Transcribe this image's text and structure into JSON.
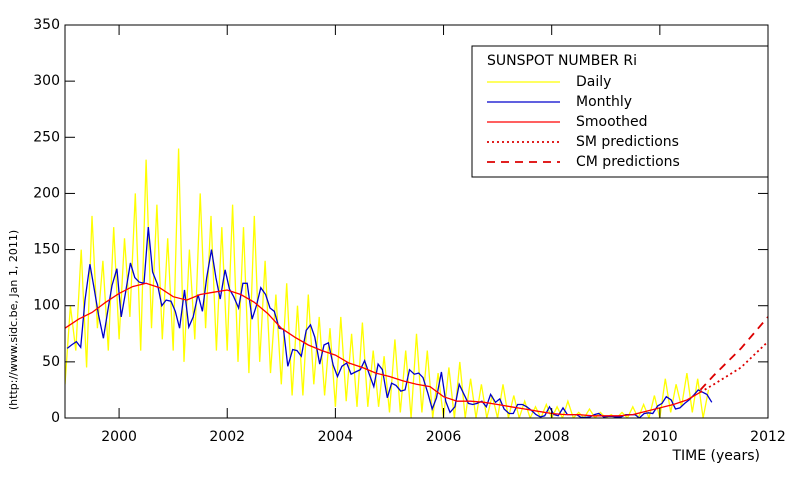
{
  "chart_data": {
    "type": "line",
    "legend_title": "SUNSPOT NUMBER Ri",
    "xlabel": "TIME (years)",
    "side_note": "(http://www.sidc.be, Jan  1, 2011)",
    "xlim": [
      1999,
      2012
    ],
    "xticks": [
      2000,
      2002,
      2004,
      2006,
      2008,
      2010,
      2012
    ],
    "ylim": [
      0,
      350
    ],
    "yticks": [
      0,
      50,
      100,
      150,
      200,
      250,
      300,
      350
    ],
    "legend": "upper right",
    "series": [
      {
        "name": "Daily",
        "color": "#ffff00",
        "style": "solid",
        "x": [
          1999.0,
          1999.1,
          1999.2,
          1999.3,
          1999.4,
          1999.5,
          1999.6,
          1999.7,
          1999.8,
          1999.9,
          2000.0,
          2000.1,
          2000.2,
          2000.3,
          2000.4,
          2000.5,
          2000.6,
          2000.7,
          2000.8,
          2000.9,
          2001.0,
          2001.1,
          2001.2,
          2001.3,
          2001.4,
          2001.5,
          2001.6,
          2001.7,
          2001.8,
          2001.9,
          2002.0,
          2002.1,
          2002.2,
          2002.3,
          2002.4,
          2002.5,
          2002.6,
          2002.7,
          2002.8,
          2002.9,
          2003.0,
          2003.1,
          2003.2,
          2003.3,
          2003.4,
          2003.5,
          2003.6,
          2003.7,
          2003.8,
          2003.9,
          2004.0,
          2004.1,
          2004.2,
          2004.3,
          2004.4,
          2004.5,
          2004.6,
          2004.7,
          2004.8,
          2004.9,
          2005.0,
          2005.1,
          2005.2,
          2005.3,
          2005.4,
          2005.5,
          2005.6,
          2005.7,
          2005.8,
          2005.9,
          2006.0,
          2006.1,
          2006.2,
          2006.3,
          2006.4,
          2006.5,
          2006.6,
          2006.7,
          2006.8,
          2006.9,
          2007.0,
          2007.1,
          2007.2,
          2007.3,
          2007.4,
          2007.5,
          2007.6,
          2007.7,
          2007.8,
          2007.9,
          2008.0,
          2008.1,
          2008.2,
          2008.3,
          2008.4,
          2008.5,
          2008.6,
          2008.7,
          2008.8,
          2008.9,
          2009.0,
          2009.1,
          2009.2,
          2009.3,
          2009.4,
          2009.5,
          2009.6,
          2009.7,
          2009.8,
          2009.9,
          2010.0,
          2010.1,
          2010.2,
          2010.3,
          2010.4,
          2010.5,
          2010.6,
          2010.7,
          2010.8,
          2010.9
        ],
        "values": [
          30,
          100,
          60,
          150,
          45,
          180,
          80,
          140,
          60,
          170,
          70,
          160,
          90,
          200,
          60,
          230,
          80,
          190,
          70,
          160,
          60,
          240,
          50,
          150,
          70,
          200,
          80,
          180,
          60,
          170,
          60,
          190,
          50,
          170,
          40,
          180,
          50,
          140,
          40,
          110,
          30,
          120,
          20,
          100,
          20,
          110,
          30,
          90,
          20,
          80,
          10,
          90,
          15,
          75,
          10,
          85,
          10,
          60,
          10,
          55,
          5,
          70,
          5,
          60,
          0,
          75,
          5,
          60,
          0,
          40,
          0,
          45,
          0,
          50,
          0,
          35,
          0,
          30,
          0,
          20,
          0,
          30,
          0,
          20,
          0,
          15,
          0,
          10,
          0,
          12,
          0,
          10,
          0,
          15,
          0,
          5,
          0,
          8,
          0,
          5,
          0,
          3,
          0,
          5,
          0,
          10,
          0,
          12,
          0,
          20,
          0,
          35,
          5,
          30,
          10,
          40,
          5,
          35,
          0,
          25
        ]
      },
      {
        "name": "Monthly",
        "color": "#0000cc",
        "style": "solid",
        "x": [
          1999.04,
          1999.12,
          1999.21,
          1999.29,
          1999.37,
          1999.46,
          1999.54,
          1999.62,
          1999.71,
          1999.79,
          1999.87,
          1999.96,
          2000.04,
          2000.12,
          2000.21,
          2000.29,
          2000.37,
          2000.46,
          2000.54,
          2000.62,
          2000.71,
          2000.79,
          2000.87,
          2000.96,
          2001.04,
          2001.12,
          2001.21,
          2001.29,
          2001.37,
          2001.46,
          2001.54,
          2001.62,
          2001.71,
          2001.79,
          2001.87,
          2001.96,
          2002.04,
          2002.12,
          2002.21,
          2002.29,
          2002.37,
          2002.46,
          2002.54,
          2002.62,
          2002.71,
          2002.79,
          2002.87,
          2002.96,
          2003.04,
          2003.12,
          2003.21,
          2003.29,
          2003.37,
          2003.46,
          2003.54,
          2003.62,
          2003.71,
          2003.79,
          2003.87,
          2003.96,
          2004.04,
          2004.12,
          2004.21,
          2004.29,
          2004.37,
          2004.46,
          2004.54,
          2004.62,
          2004.71,
          2004.79,
          2004.87,
          2004.96,
          2005.04,
          2005.12,
          2005.21,
          2005.29,
          2005.37,
          2005.46,
          2005.54,
          2005.62,
          2005.71,
          2005.79,
          2005.87,
          2005.96,
          2006.04,
          2006.12,
          2006.21,
          2006.29,
          2006.37,
          2006.46,
          2006.54,
          2006.62,
          2006.71,
          2006.79,
          2006.87,
          2006.96,
          2007.04,
          2007.12,
          2007.21,
          2007.29,
          2007.37,
          2007.46,
          2007.54,
          2007.62,
          2007.71,
          2007.79,
          2007.87,
          2007.96,
          2008.04,
          2008.12,
          2008.21,
          2008.29,
          2008.37,
          2008.46,
          2008.54,
          2008.62,
          2008.71,
          2008.79,
          2008.87,
          2008.96,
          2009.04,
          2009.12,
          2009.21,
          2009.29,
          2009.37,
          2009.46,
          2009.54,
          2009.62,
          2009.71,
          2009.79,
          2009.87,
          2009.96,
          2010.04,
          2010.12,
          2010.21,
          2010.29,
          2010.37,
          2010.46,
          2010.54,
          2010.62,
          2010.71,
          2010.79,
          2010.87,
          2010.96
        ],
        "values": [
          62,
          65,
          68,
          63,
          105,
          137,
          115,
          92,
          71,
          95,
          118,
          133,
          90,
          112,
          138,
          125,
          121,
          120,
          170,
          130,
          119,
          100,
          105,
          104,
          95,
          80,
          114,
          81,
          90,
          110,
          95,
          125,
          150,
          125,
          106,
          132,
          115,
          108,
          98,
          120,
          120,
          88,
          100,
          116,
          110,
          98,
          95,
          80,
          79,
          46,
          61,
          60,
          55,
          78,
          83,
          72,
          48,
          65,
          67,
          47,
          37,
          46,
          49,
          39,
          41,
          43,
          51,
          40,
          28,
          48,
          43,
          18,
          31,
          29,
          24,
          25,
          43,
          39,
          40,
          36,
          22,
          8,
          18,
          41,
          15,
          5,
          10,
          30,
          22,
          13,
          12,
          13,
          15,
          10,
          21,
          14,
          17,
          8,
          4,
          4,
          12,
          12,
          10,
          7,
          3,
          1,
          2,
          10,
          3,
          2,
          9,
          3,
          3,
          3,
          0.5,
          0.5,
          1,
          3,
          4,
          1,
          1.5,
          1.4,
          0.7,
          1.2,
          3,
          2.9,
          3,
          0,
          4,
          4.6,
          4,
          10.8,
          13,
          19,
          16,
          8,
          9,
          13,
          16,
          20,
          25,
          23,
          21,
          14
        ]
      },
      {
        "name": "Smoothed",
        "color": "#ff0000",
        "style": "solid",
        "x": [
          1999.0,
          1999.25,
          1999.5,
          1999.75,
          2000.0,
          2000.25,
          2000.5,
          2000.75,
          2001.0,
          2001.25,
          2001.5,
          2001.75,
          2002.0,
          2002.25,
          2002.5,
          2002.75,
          2003.0,
          2003.25,
          2003.5,
          2003.75,
          2004.0,
          2004.25,
          2004.5,
          2004.75,
          2005.0,
          2005.25,
          2005.5,
          2005.75,
          2006.0,
          2006.25,
          2006.5,
          2006.75,
          2007.0,
          2007.25,
          2007.5,
          2007.75,
          2008.0,
          2008.25,
          2008.5,
          2008.75,
          2009.0,
          2009.25,
          2009.5,
          2009.75,
          2010.0,
          2010.25,
          2010.5,
          2010.75
        ],
        "values": [
          80,
          88,
          94,
          103,
          111,
          117,
          120,
          116,
          108,
          105,
          110,
          112,
          114,
          110,
          103,
          93,
          80,
          72,
          65,
          60,
          56,
          49,
          45,
          40,
          37,
          33,
          30,
          28,
          19,
          15,
          15,
          14,
          12,
          10,
          8,
          6,
          4,
          3,
          3,
          2,
          2,
          2,
          3,
          6,
          9,
          12,
          16,
          23
        ]
      },
      {
        "name": "SM predictions",
        "color": "#dd0000",
        "style": "dotted",
        "x": [
          2010.75,
          2011.0,
          2011.5,
          2012.0
        ],
        "values": [
          23,
          30,
          45,
          68
        ]
      },
      {
        "name": "CM predictions",
        "color": "#dd0000",
        "style": "dashed",
        "x": [
          2010.75,
          2011.0,
          2011.5,
          2012.0
        ],
        "values": [
          25,
          38,
          62,
          90
        ]
      }
    ]
  }
}
